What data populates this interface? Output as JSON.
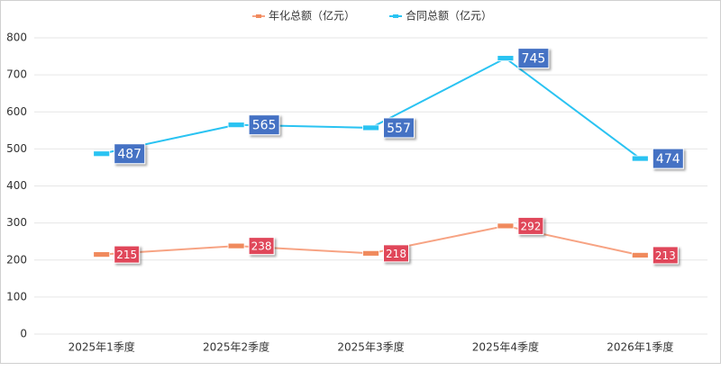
{
  "chart_data": {
    "type": "line",
    "categories": [
      "2025年1季度",
      "2025年2季度",
      "2025年3季度",
      "2025年4季度",
      "2026年1季度"
    ],
    "series": [
      {
        "name": "年化总额（亿元）",
        "color": "#f7a383",
        "marker_color": "#f08a5d",
        "label_color": "#e0475a",
        "values": [
          215,
          238,
          218,
          292,
          213
        ]
      },
      {
        "name": "合同总额（亿元）",
        "color": "#2ac3f2",
        "marker_color": "#2ac3f2",
        "label_color": "#4472c4",
        "values": [
          487,
          565,
          557,
          745,
          474
        ]
      }
    ],
    "ylim": [
      0,
      800
    ],
    "yticks": [
      0,
      100,
      200,
      300,
      400,
      500,
      600,
      700,
      800
    ],
    "grid": true,
    "legend": "top"
  }
}
